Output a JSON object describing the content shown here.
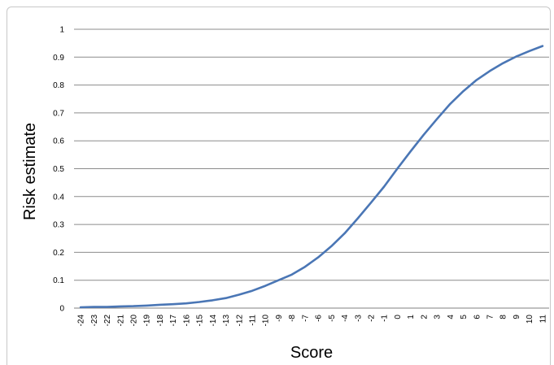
{
  "chart_data": {
    "type": "line",
    "title": "",
    "xlabel": "Score",
    "ylabel": "Risk estimate",
    "ylim": [
      0,
      1
    ],
    "y_ticks": [
      "0",
      "0.1",
      "0.2",
      "0.3",
      "0.4",
      "0.5",
      "0.6",
      "0.7",
      "0.8",
      "0.9",
      "1"
    ],
    "grid": true,
    "categories": [
      "-24",
      "-23",
      "-22",
      "-21",
      "-20",
      "-19",
      "-18",
      "-17",
      "-16",
      "-15",
      "-14",
      "-13",
      "-12",
      "-11",
      "-10",
      "-9",
      "-8",
      "-7",
      "-6",
      "-5",
      "-4",
      "-3",
      "-2",
      "-1",
      "0",
      "1",
      "2",
      "3",
      "4",
      "5",
      "6",
      "7",
      "8",
      "9",
      "10",
      "11"
    ],
    "series": [
      {
        "color": "#4a76b5",
        "values": [
          0.003,
          0.004,
          0.004,
          0.006,
          0.007,
          0.009,
          0.012,
          0.014,
          0.017,
          0.022,
          0.028,
          0.036,
          0.048,
          0.062,
          0.08,
          0.1,
          0.12,
          0.148,
          0.182,
          0.222,
          0.268,
          0.322,
          0.378,
          0.436,
          0.5,
          0.562,
          0.622,
          0.678,
          0.732,
          0.778,
          0.818,
          0.85,
          0.878,
          0.902,
          0.922,
          0.94
        ]
      }
    ]
  }
}
